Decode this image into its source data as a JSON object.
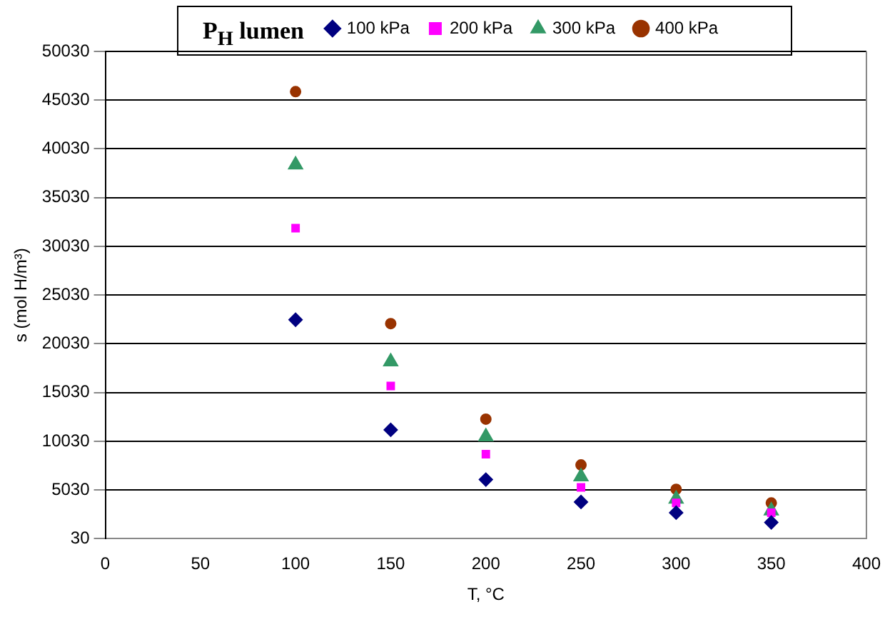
{
  "chart_data": {
    "type": "scatter",
    "xlabel": "T, °C",
    "ylabel": "s (mol H/m³)",
    "legend_title": "P$_{H}$ lumen",
    "legend": "top",
    "grid": "y",
    "x": [
      100,
      150,
      200,
      250,
      300,
      350
    ],
    "xlim": [
      0,
      400
    ],
    "xticks": [
      0,
      50,
      100,
      150,
      200,
      250,
      300,
      350,
      400
    ],
    "ylim": [
      30,
      50030
    ],
    "yticks": [
      30,
      5030,
      10030,
      15030,
      20030,
      25030,
      30030,
      35030,
      40030,
      45030,
      50030
    ],
    "series": [
      {
        "name": "100 kPa",
        "color": "#000080",
        "marker": "diamond",
        "values": [
          22500,
          11200,
          6100,
          3800,
          2700,
          1700
        ]
      },
      {
        "name": "200 kPa",
        "color": "#ff00ff",
        "marker": "square",
        "values": [
          31900,
          15700,
          8700,
          5300,
          3700,
          2700
        ]
      },
      {
        "name": "300 kPa",
        "color": "#339966",
        "marker": "triangle",
        "values": [
          38400,
          18200,
          10500,
          6400,
          4100,
          2900
        ]
      },
      {
        "name": "400 kPa",
        "color": "#993300",
        "marker": "circle",
        "values": [
          45900,
          22100,
          12300,
          7600,
          5100,
          3700
        ]
      }
    ]
  }
}
